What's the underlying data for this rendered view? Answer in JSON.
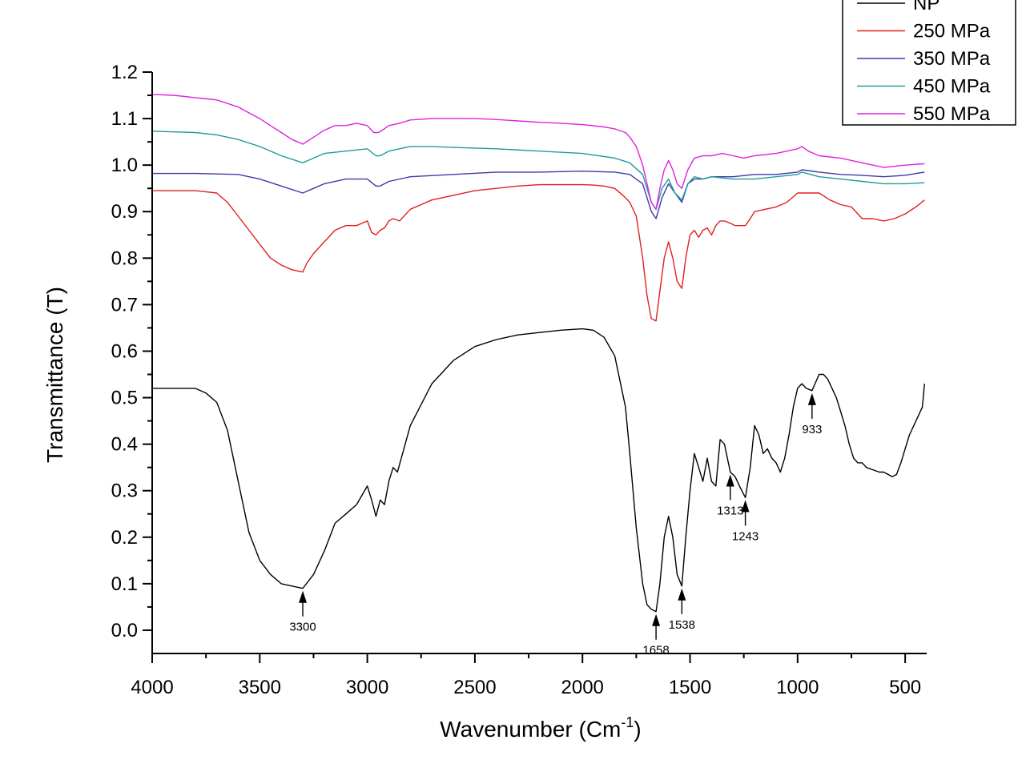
{
  "chart_data": {
    "type": "line",
    "xlabel": "Wavenumber (Cm",
    "xlabel_sup": "-1",
    "xlabel_tail": ")",
    "ylabel": "Transmittance (T)",
    "xlim": [
      4000,
      400
    ],
    "xaxis_reversed": true,
    "ylim": [
      -0.05,
      1.2
    ],
    "xticks": [
      4000,
      3500,
      3000,
      2500,
      2000,
      1500,
      1000,
      500
    ],
    "xtick_labels": [
      "4000",
      "3500",
      "3000",
      "2500",
      "2000",
      "1500",
      "1000",
      "500"
    ],
    "yticks": [
      0.0,
      0.1,
      0.2,
      0.3,
      0.4,
      0.5,
      0.6,
      0.7,
      0.8,
      0.9,
      1.0,
      1.1,
      1.2
    ],
    "ytick_labels": [
      "0.0",
      "0.1",
      "0.2",
      "0.3",
      "0.4",
      "0.5",
      "0.6",
      "0.7",
      "0.8",
      "0.9",
      "1.0",
      "1.1",
      "1.2"
    ],
    "grid": false,
    "legend_position": "top-right",
    "series": [
      {
        "name": "NP",
        "color": "#000000",
        "x": [
          4000,
          3800,
          3750,
          3700,
          3650,
          3600,
          3550,
          3500,
          3450,
          3400,
          3350,
          3300,
          3250,
          3200,
          3150,
          3100,
          3050,
          3000,
          2980,
          2960,
          2940,
          2920,
          2900,
          2880,
          2860,
          2800,
          2700,
          2600,
          2500,
          2400,
          2300,
          2200,
          2100,
          2000,
          1950,
          1900,
          1850,
          1800,
          1780,
          1750,
          1720,
          1700,
          1680,
          1658,
          1640,
          1620,
          1600,
          1580,
          1560,
          1538,
          1520,
          1500,
          1480,
          1460,
          1440,
          1420,
          1400,
          1380,
          1360,
          1340,
          1313,
          1290,
          1270,
          1243,
          1220,
          1200,
          1180,
          1160,
          1140,
          1120,
          1100,
          1080,
          1060,
          1040,
          1020,
          1000,
          980,
          960,
          933,
          900,
          880,
          860,
          840,
          820,
          800,
          780,
          760,
          740,
          720,
          700,
          680,
          650,
          620,
          600,
          580,
          560,
          540,
          520,
          500,
          480,
          460,
          440,
          420,
          410
        ],
        "y": [
          0.52,
          0.52,
          0.51,
          0.49,
          0.43,
          0.32,
          0.21,
          0.15,
          0.12,
          0.1,
          0.095,
          0.09,
          0.12,
          0.17,
          0.23,
          0.25,
          0.27,
          0.31,
          0.28,
          0.245,
          0.28,
          0.27,
          0.32,
          0.35,
          0.34,
          0.44,
          0.53,
          0.58,
          0.61,
          0.625,
          0.635,
          0.64,
          0.645,
          0.648,
          0.645,
          0.63,
          0.59,
          0.48,
          0.38,
          0.22,
          0.1,
          0.055,
          0.045,
          0.04,
          0.1,
          0.2,
          0.245,
          0.2,
          0.12,
          0.095,
          0.2,
          0.3,
          0.38,
          0.35,
          0.32,
          0.37,
          0.32,
          0.31,
          0.41,
          0.4,
          0.34,
          0.33,
          0.31,
          0.285,
          0.35,
          0.44,
          0.42,
          0.38,
          0.39,
          0.37,
          0.36,
          0.34,
          0.37,
          0.42,
          0.48,
          0.52,
          0.53,
          0.52,
          0.515,
          0.55,
          0.55,
          0.54,
          0.52,
          0.5,
          0.47,
          0.44,
          0.4,
          0.37,
          0.36,
          0.36,
          0.35,
          0.345,
          0.34,
          0.34,
          0.335,
          0.33,
          0.335,
          0.36,
          0.39,
          0.42,
          0.44,
          0.46,
          0.48,
          0.53
        ]
      },
      {
        "name": "250 MPa",
        "color": "#e0201e",
        "x": [
          4000,
          3800,
          3700,
          3650,
          3600,
          3550,
          3500,
          3450,
          3400,
          3350,
          3300,
          3280,
          3250,
          3200,
          3150,
          3100,
          3050,
          3000,
          2980,
          2960,
          2940,
          2920,
          2900,
          2880,
          2850,
          2800,
          2700,
          2600,
          2500,
          2400,
          2300,
          2200,
          2100,
          2000,
          1950,
          1900,
          1850,
          1800,
          1780,
          1750,
          1720,
          1700,
          1680,
          1658,
          1640,
          1620,
          1600,
          1580,
          1560,
          1538,
          1520,
          1500,
          1480,
          1460,
          1440,
          1420,
          1400,
          1380,
          1360,
          1340,
          1313,
          1290,
          1270,
          1243,
          1220,
          1200,
          1150,
          1100,
          1050,
          1000,
          950,
          900,
          850,
          800,
          750,
          700,
          650,
          600,
          550,
          500,
          450,
          410
        ],
        "y": [
          0.945,
          0.945,
          0.94,
          0.92,
          0.89,
          0.86,
          0.83,
          0.8,
          0.785,
          0.775,
          0.77,
          0.79,
          0.81,
          0.835,
          0.86,
          0.87,
          0.87,
          0.88,
          0.855,
          0.85,
          0.86,
          0.865,
          0.88,
          0.885,
          0.88,
          0.905,
          0.925,
          0.935,
          0.945,
          0.95,
          0.955,
          0.958,
          0.958,
          0.958,
          0.957,
          0.955,
          0.95,
          0.93,
          0.92,
          0.89,
          0.8,
          0.72,
          0.67,
          0.665,
          0.73,
          0.8,
          0.835,
          0.8,
          0.75,
          0.735,
          0.8,
          0.85,
          0.86,
          0.845,
          0.86,
          0.865,
          0.85,
          0.87,
          0.88,
          0.88,
          0.875,
          0.87,
          0.87,
          0.87,
          0.885,
          0.9,
          0.905,
          0.91,
          0.92,
          0.94,
          0.94,
          0.94,
          0.925,
          0.915,
          0.91,
          0.885,
          0.885,
          0.88,
          0.885,
          0.895,
          0.91,
          0.925
        ]
      },
      {
        "name": "350 MPa",
        "color": "#3d3aa8",
        "x": [
          4000,
          3800,
          3600,
          3500,
          3400,
          3300,
          3250,
          3200,
          3100,
          3000,
          2960,
          2940,
          2900,
          2800,
          2600,
          2400,
          2200,
          2000,
          1850,
          1780,
          1720,
          1680,
          1658,
          1630,
          1600,
          1570,
          1538,
          1510,
          1480,
          1440,
          1400,
          1300,
          1200,
          1100,
          1000,
          980,
          900,
          800,
          700,
          600,
          500,
          410
        ],
        "y": [
          0.982,
          0.982,
          0.98,
          0.97,
          0.955,
          0.94,
          0.95,
          0.96,
          0.97,
          0.97,
          0.955,
          0.955,
          0.965,
          0.975,
          0.98,
          0.985,
          0.985,
          0.987,
          0.985,
          0.98,
          0.96,
          0.9,
          0.885,
          0.93,
          0.96,
          0.94,
          0.92,
          0.96,
          0.97,
          0.97,
          0.975,
          0.975,
          0.98,
          0.98,
          0.985,
          0.99,
          0.985,
          0.98,
          0.978,
          0.975,
          0.978,
          0.985
        ]
      },
      {
        "name": "450 MPa",
        "color": "#1f9c9c",
        "x": [
          4000,
          3800,
          3700,
          3600,
          3500,
          3400,
          3300,
          3250,
          3200,
          3100,
          3000,
          2960,
          2940,
          2900,
          2800,
          2700,
          2600,
          2400,
          2200,
          2000,
          1850,
          1780,
          1720,
          1680,
          1658,
          1630,
          1600,
          1570,
          1538,
          1510,
          1480,
          1440,
          1400,
          1300,
          1200,
          1100,
          1000,
          980,
          900,
          800,
          700,
          600,
          500,
          410
        ],
        "y": [
          1.073,
          1.07,
          1.065,
          1.055,
          1.04,
          1.02,
          1.005,
          1.015,
          1.025,
          1.03,
          1.035,
          1.02,
          1.02,
          1.03,
          1.04,
          1.04,
          1.038,
          1.035,
          1.03,
          1.025,
          1.015,
          1.005,
          0.98,
          0.92,
          0.905,
          0.95,
          0.97,
          0.94,
          0.925,
          0.96,
          0.975,
          0.97,
          0.975,
          0.97,
          0.97,
          0.975,
          0.98,
          0.985,
          0.975,
          0.97,
          0.965,
          0.96,
          0.96,
          0.962
        ]
      },
      {
        "name": "550 MPa",
        "color": "#e020e0",
        "x": [
          4000,
          3900,
          3800,
          3700,
          3600,
          3500,
          3450,
          3400,
          3350,
          3300,
          3250,
          3200,
          3150,
          3100,
          3050,
          3000,
          2970,
          2950,
          2930,
          2900,
          2850,
          2800,
          2700,
          2600,
          2500,
          2400,
          2300,
          2200,
          2100,
          2000,
          1900,
          1850,
          1800,
          1780,
          1750,
          1720,
          1700,
          1680,
          1658,
          1640,
          1620,
          1600,
          1580,
          1560,
          1538,
          1510,
          1480,
          1440,
          1400,
          1350,
          1300,
          1250,
          1200,
          1100,
          1000,
          980,
          950,
          900,
          800,
          700,
          600,
          500,
          410
        ],
        "y": [
          1.152,
          1.15,
          1.145,
          1.14,
          1.125,
          1.1,
          1.085,
          1.07,
          1.055,
          1.045,
          1.06,
          1.075,
          1.085,
          1.085,
          1.09,
          1.085,
          1.07,
          1.07,
          1.075,
          1.085,
          1.09,
          1.097,
          1.1,
          1.1,
          1.1,
          1.098,
          1.095,
          1.092,
          1.09,
          1.087,
          1.082,
          1.078,
          1.07,
          1.06,
          1.04,
          1.0,
          0.96,
          0.92,
          0.905,
          0.95,
          0.99,
          1.01,
          0.99,
          0.96,
          0.95,
          0.99,
          1.015,
          1.02,
          1.02,
          1.025,
          1.02,
          1.015,
          1.02,
          1.025,
          1.035,
          1.04,
          1.03,
          1.02,
          1.015,
          1.005,
          0.995,
          1.0,
          1.003
        ]
      }
    ],
    "annotations": [
      {
        "label": "3300",
        "x": 3300,
        "y": 0.09
      },
      {
        "label": "1658",
        "x": 1658,
        "y": 0.04
      },
      {
        "label": "1538",
        "x": 1538,
        "y": 0.095
      },
      {
        "label": "1313",
        "x": 1313,
        "y": 0.34
      },
      {
        "label": "1243",
        "x": 1243,
        "y": 0.285
      },
      {
        "label": "933",
        "x": 933,
        "y": 0.515
      }
    ]
  }
}
